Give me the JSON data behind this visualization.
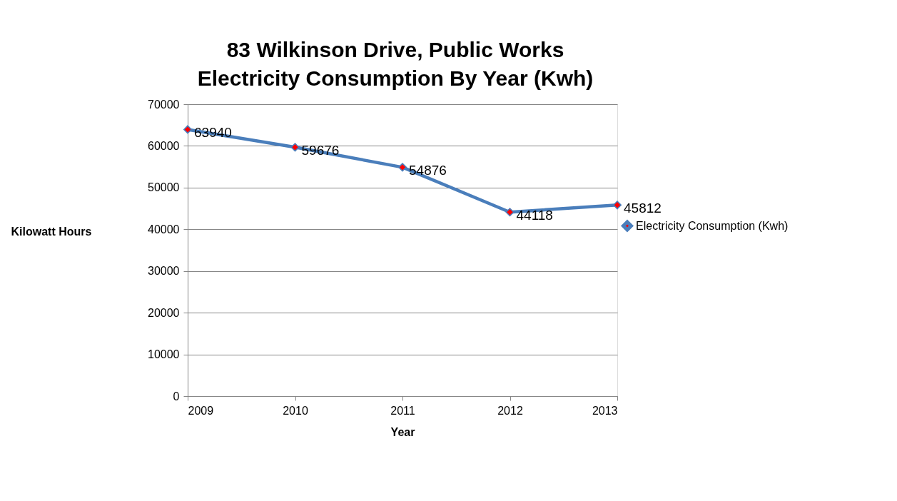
{
  "chart_data": {
    "type": "line",
    "title": "83 Wilkinson Drive, Public Works Electricity Consumption By Year (Kwh)",
    "xlabel": "Year",
    "ylabel": "Kilowatt Hours",
    "x": [
      2009,
      2010,
      2011,
      2012,
      2013
    ],
    "series": [
      {
        "name": "Electricity Consumption (Kwh)",
        "color": "#4a7ebb",
        "colors": [
          "#ff0000",
          "#ff0000",
          "#ff0000",
          "#ff0000",
          "#ff0000"
        ],
        "values": [
          63940,
          59676,
          54876,
          44118,
          45812
        ]
      }
    ],
    "xlim": [
      2009,
      2013
    ],
    "xticks": [
      2009,
      2010,
      2011,
      2012,
      2013
    ],
    "ylim": [
      0,
      70000
    ],
    "yticks": [
      0,
      10000,
      20000,
      30000,
      40000,
      50000,
      60000,
      70000
    ],
    "grid": "y",
    "legend": "right",
    "marker": "diamond",
    "line_style": "solid",
    "data_labels": true
  }
}
